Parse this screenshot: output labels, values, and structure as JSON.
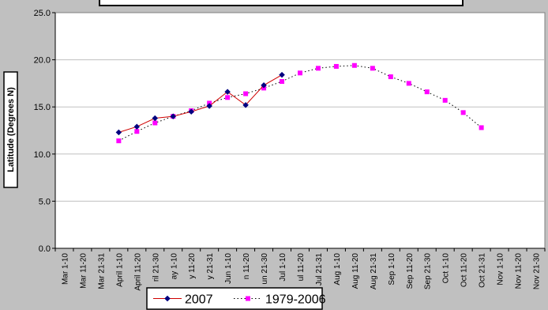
{
  "chart_data": {
    "type": "line",
    "title": "",
    "ylabel": "Latitude (Degrees N)",
    "xlabel": "",
    "ylim": [
      0,
      25
    ],
    "yticks": [
      "0.0",
      "5.0",
      "10.0",
      "15.0",
      "20.0",
      "25.0"
    ],
    "categories": [
      "Mar 1-10",
      "Mar 11-20",
      "Mar 21-31",
      "April 1-10",
      "April 11-20",
      "ril 21-30",
      "ay 1-10",
      "y 11-20",
      "y 21-31",
      "Jun 1-10",
      "n 11-20",
      "un 21-30",
      "Jul 1-10",
      "ul 11-20",
      "Jul 21-31",
      "Aug 1-10",
      "Aug 11-20",
      "Aug 21-31",
      "Sep 1-10",
      "Sep 11-20",
      "Sep 21-30",
      "Oct 1-10",
      "Oct 11-20",
      "Oct 21-31",
      "Nov 1-10",
      "Nov 11-20",
      "Nov 21-30"
    ],
    "series": [
      {
        "name": "2007",
        "color": "#d00000",
        "marker_color": "#000080",
        "marker": "diamond",
        "style": "solid",
        "values": [
          null,
          null,
          null,
          12.3,
          12.9,
          13.8,
          14.0,
          14.5,
          15.1,
          16.6,
          15.2,
          17.3,
          18.4,
          null,
          null,
          null,
          null,
          null,
          null,
          null,
          null,
          null,
          null,
          null,
          null,
          null,
          null
        ]
      },
      {
        "name": "1979-2006",
        "color": "#000000",
        "marker_color": "#ff00ff",
        "marker": "square",
        "style": "dotted",
        "values": [
          null,
          null,
          null,
          11.4,
          12.4,
          13.3,
          14.0,
          14.6,
          15.4,
          16.0,
          16.4,
          17.0,
          17.7,
          18.6,
          19.1,
          19.3,
          19.4,
          19.1,
          18.2,
          17.5,
          16.6,
          15.7,
          14.4,
          12.8,
          null,
          null,
          null
        ]
      }
    ],
    "grid": "horizontal",
    "legend": "bottom"
  }
}
